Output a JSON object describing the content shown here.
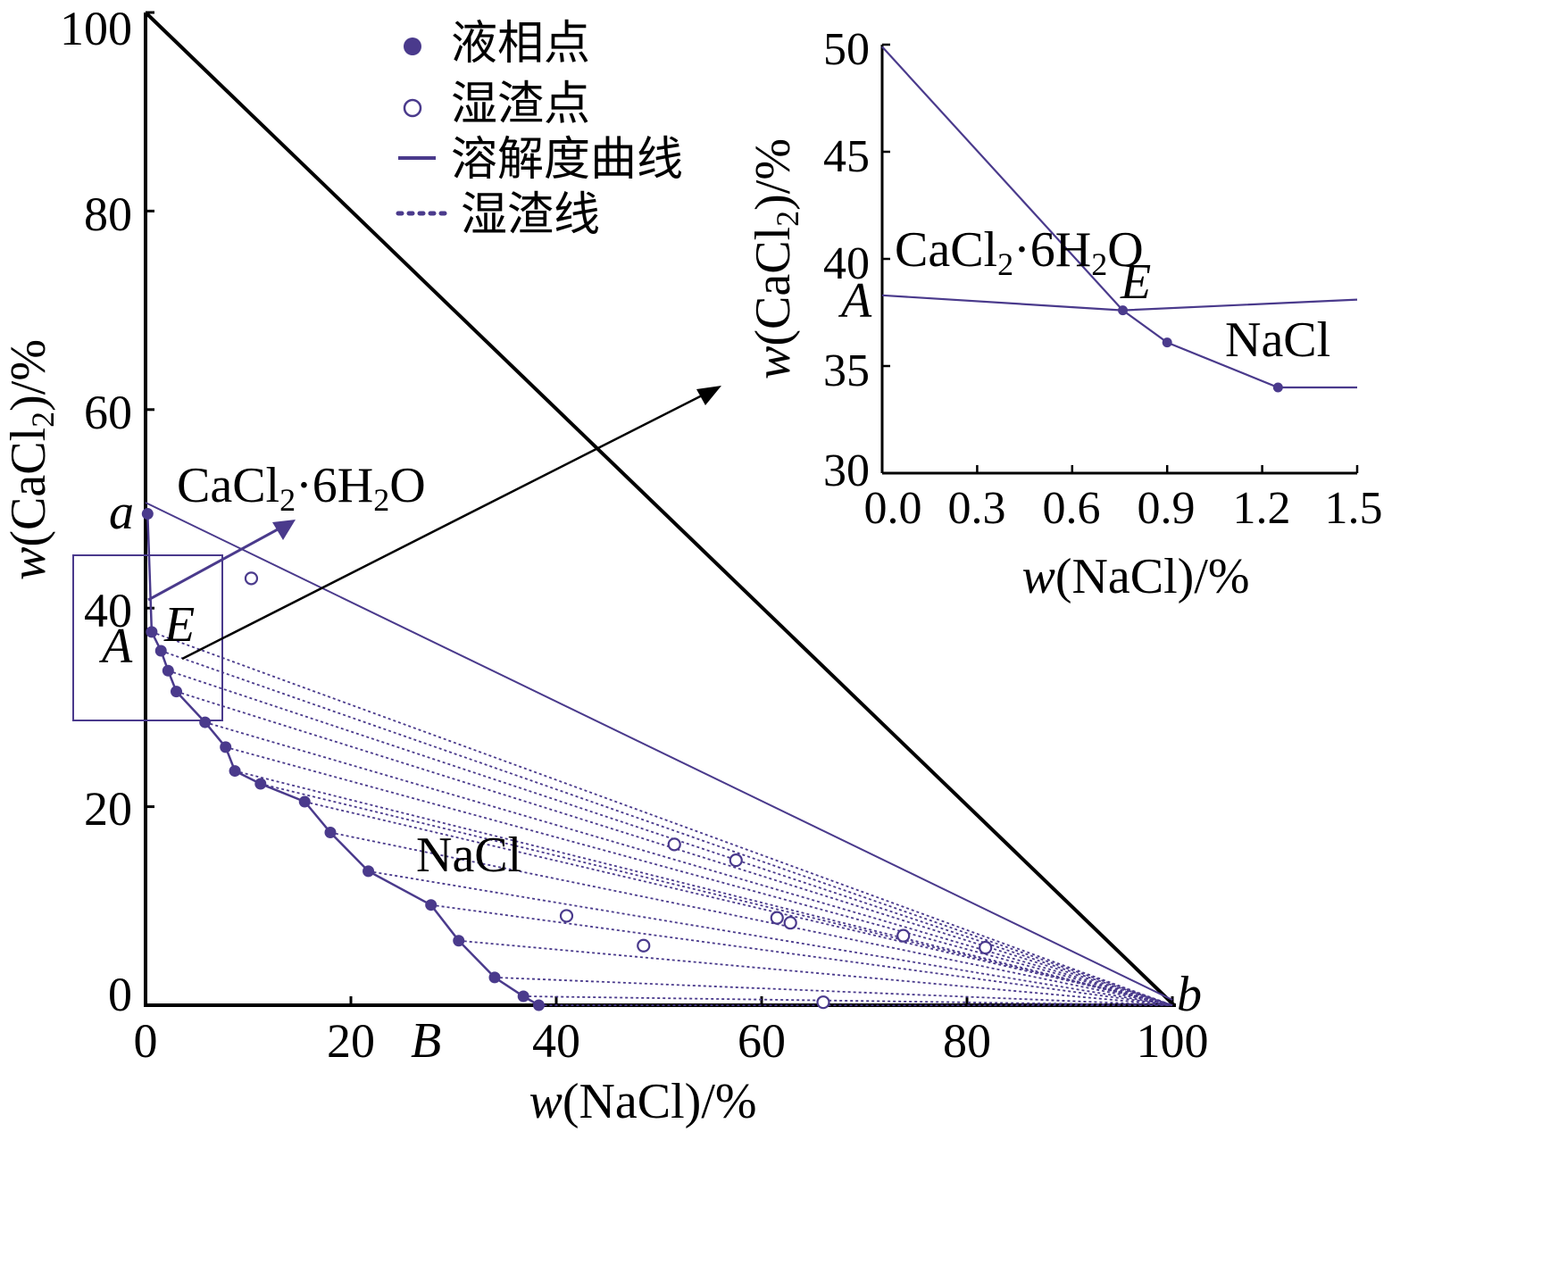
{
  "colors": {
    "curve": "#4a3a8c",
    "axis": "#000000"
  },
  "legend": {
    "liquid": "液相点",
    "wet": "湿渣点",
    "solubility": "溶解度曲线",
    "tie": "湿渣线"
  },
  "main": {
    "x_title_var": "w",
    "x_title_rest": "(NaCl)/%",
    "y_title_var": "w",
    "y_title_a": "(CaCl",
    "y_title_sub": "2",
    "y_title_b": ")/%",
    "x_ticks": [
      "0",
      "20",
      "40",
      "60",
      "80",
      "100"
    ],
    "y_ticks": [
      "0",
      "20",
      "40",
      "60",
      "80",
      "100"
    ],
    "points": {
      "a": "a",
      "A": "A",
      "E": "E",
      "B": "B",
      "b": "b"
    },
    "hexahydrate_a": "CaCl",
    "hexahydrate_sub1": "2",
    "hexahydrate_b": "·6H",
    "hexahydrate_sub2": "2",
    "hexahydrate_c": "O",
    "nacl": "NaCl"
  },
  "inset": {
    "x_title_var": "w",
    "x_title_rest": "(NaCl)/%",
    "y_title_var": "w",
    "y_title_a": "(CaCl",
    "y_title_sub": "2",
    "y_title_b": ")/%",
    "x_ticks": [
      "0.0",
      "0.3",
      "0.6",
      "0.9",
      "1.2",
      "1.5"
    ],
    "y_ticks": [
      "30",
      "35",
      "40",
      "45",
      "50"
    ],
    "points": {
      "A": "A",
      "E": "E"
    },
    "hexahydrate_a": "CaCl",
    "hexahydrate_sub1": "2",
    "hexahydrate_b": "·6H",
    "hexahydrate_sub2": "2",
    "hexahydrate_c": "O",
    "nacl": "NaCl"
  },
  "chart_data": [
    {
      "type": "scatter",
      "panel": "main",
      "xlabel": "w(NaCl)/%",
      "ylabel": "w(CaCl2)/%",
      "xlim": [
        0,
        100
      ],
      "ylim": [
        0,
        100
      ],
      "grid": false,
      "legend_position": "top-center",
      "series": [
        {
          "name": "液相点",
          "marker": "filled",
          "x": [
            0.2,
            0.6,
            1.5,
            2.2,
            3.0,
            5.8,
            7.8,
            8.7,
            11.2,
            15.5,
            18.0,
            21.7,
            27.8,
            30.5,
            34.0,
            36.8,
            38.3
          ],
          "y": [
            49.5,
            37.6,
            35.7,
            33.7,
            31.6,
            28.5,
            26.0,
            23.6,
            22.3,
            20.5,
            17.4,
            13.5,
            10.1,
            6.5,
            2.8,
            0.9,
            0.0
          ]
        },
        {
          "name": "湿渣点",
          "marker": "open",
          "x": [
            10.3,
            51.5,
            57.5,
            41.0,
            61.5,
            62.8,
            48.5,
            73.8,
            81.8,
            66.0
          ],
          "y": [
            43.0,
            16.2,
            14.6,
            9.0,
            8.8,
            8.3,
            6.0,
            7.0,
            5.8,
            0.3
          ]
        },
        {
          "name": "溶解度曲线",
          "marker": "line",
          "x": [
            0.2,
            0.6,
            1.5,
            2.2,
            3.0,
            5.8,
            7.8,
            8.7,
            11.2,
            15.5,
            18.0,
            21.7,
            27.8,
            30.5,
            34.0,
            36.8,
            38.3
          ],
          "y": [
            49.5,
            37.6,
            35.7,
            33.7,
            31.6,
            28.5,
            26.0,
            23.6,
            22.3,
            20.5,
            17.4,
            13.5,
            10.1,
            6.5,
            2.8,
            0.9,
            0.0
          ]
        },
        {
          "name": "湿渣线",
          "marker": "dotted",
          "x": [
            0.6,
            1.5,
            2.2,
            3.0,
            5.8,
            7.8,
            8.7,
            11.2,
            15.5,
            18.0,
            21.7,
            27.8,
            30.5,
            34.0,
            36.8,
            38.3
          ],
          "y": [
            37.6,
            35.7,
            33.7,
            31.6,
            28.5,
            26.0,
            23.6,
            22.3,
            20.5,
            17.4,
            13.5,
            10.1,
            6.5,
            2.8,
            0.9,
            0.0
          ]
        }
      ],
      "apex": {
        "x": 100,
        "y": 0
      }
    },
    {
      "type": "line",
      "panel": "inset",
      "xlabel": "w(NaCl)/%",
      "ylabel": "w(CaCl2)/%",
      "xlim": [
        0.0,
        1.5
      ],
      "ylim": [
        30,
        50
      ],
      "grid": false,
      "series": [
        {
          "name": "CaCl2·6H2O",
          "x": [
            0.0,
            0.76
          ],
          "y": [
            49.9,
            37.6
          ]
        },
        {
          "name": "NaCl",
          "x": [
            0.76,
            0.9,
            1.25,
            1.5
          ],
          "y": [
            37.6,
            36.1,
            34.0,
            34.0
          ]
        },
        {
          "x": [
            0.0,
            0.76,
            1.5
          ],
          "y": [
            38.3,
            37.6,
            38.1
          ]
        }
      ],
      "marked_points": {
        "x": [
          0.76,
          0.9,
          1.25
        ],
        "y": [
          37.6,
          36.1,
          34.0
        ]
      }
    }
  ]
}
